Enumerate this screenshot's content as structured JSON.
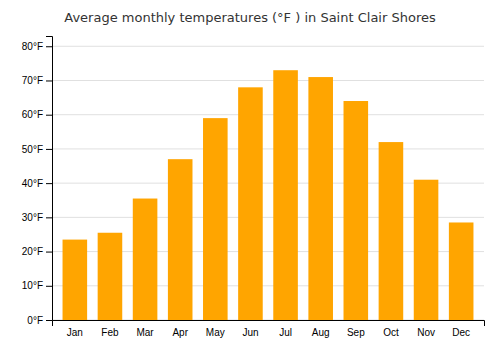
{
  "chart_data": {
    "type": "bar",
    "title": "Average monthly temperatures (°F ) in Saint Clair Shores",
    "categories": [
      "Jan",
      "Feb",
      "Mar",
      "Apr",
      "May",
      "Jun",
      "Jul",
      "Aug",
      "Sep",
      "Oct",
      "Nov",
      "Dec"
    ],
    "values": [
      23.5,
      25.5,
      35.5,
      47,
      59,
      68,
      73,
      71,
      64,
      52,
      41,
      28.5
    ],
    "color": "#FFA500",
    "ylim": [
      0,
      83
    ],
    "yticks": [
      {
        "value": 0,
        "label": "0°F"
      },
      {
        "value": 10,
        "label": "10°F"
      },
      {
        "value": 20,
        "label": "20°F"
      },
      {
        "value": 30,
        "label": "30°F"
      },
      {
        "value": 40,
        "label": "40°F"
      },
      {
        "value": 50,
        "label": "50°F"
      },
      {
        "value": 60,
        "label": "60°F"
      },
      {
        "value": 70,
        "label": "70°F"
      },
      {
        "value": 80,
        "label": "80°F"
      }
    ],
    "grid": true
  }
}
